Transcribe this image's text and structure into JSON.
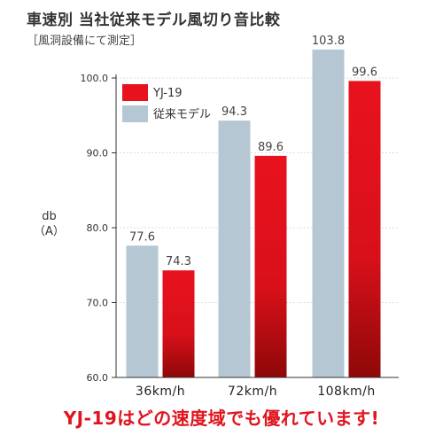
{
  "title": "車速別 当社従来モデル風切り音比較",
  "subtitle": "［風洞設備にて測定］",
  "ylabel_top": "db",
  "ylabel_bottom": "（A）",
  "footer": "YJ-19はどの速度域でも優れています!",
  "colors": {
    "yj19_top": "#e8121e",
    "yj19_bottom": "#8e0808",
    "old": "#b4c7d2",
    "axis": "#333333"
  },
  "chart_data": {
    "type": "bar",
    "categories": [
      "36km/h",
      "72km/h",
      "108km/h"
    ],
    "series": [
      {
        "name": "従来モデル",
        "values": [
          77.6,
          94.3,
          103.8
        ],
        "labels": [
          "77.6",
          "94.3",
          "103.8"
        ]
      },
      {
        "name": "YJ-19",
        "values": [
          74.3,
          89.6,
          99.6
        ],
        "labels": [
          "74.3",
          "89.6",
          "99.6"
        ]
      }
    ],
    "legend": [
      {
        "name": "YJ-19"
      },
      {
        "name": "従来モデル"
      }
    ],
    "ylim": [
      60,
      100
    ],
    "yticks": [
      60,
      70,
      80,
      90,
      100
    ],
    "ytick_labels": [
      "60.0",
      "70.0",
      "80.0",
      "90.0",
      "100.0"
    ],
    "legend_position": "top-left"
  }
}
